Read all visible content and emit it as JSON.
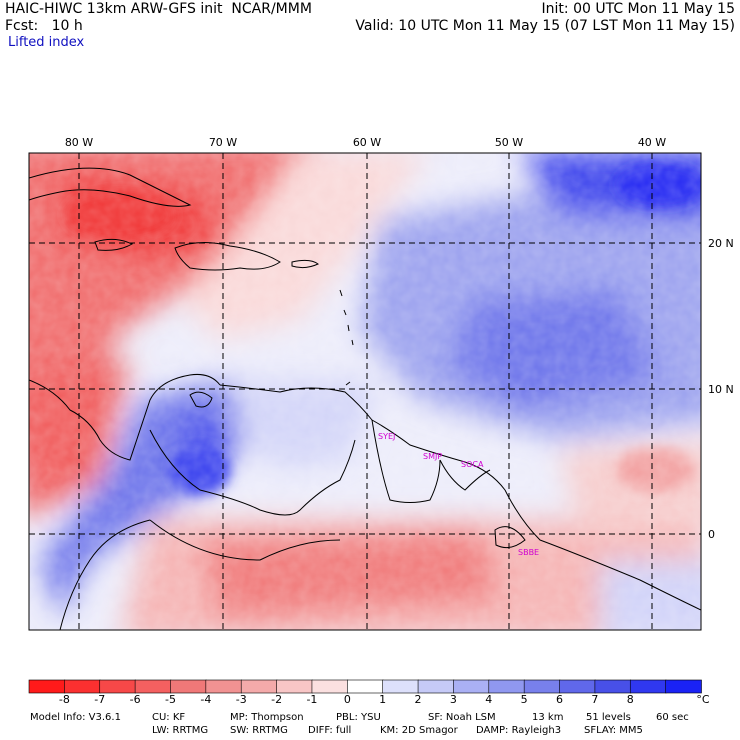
{
  "header": {
    "model_title": "HAIC-HIWC 13km ARW-GFS init  NCAR/MMM",
    "forecast_hour": "Fcst:   10 h",
    "init_time": "Init: 00 UTC Mon 11 May 15",
    "valid_time": "Valid: 10 UTC Mon 11 May 15 (07 LST Mon 11 May 15)",
    "field_name": "Lifted index"
  },
  "map": {
    "lon_labels": [
      "80 W",
      "70 W",
      "60 W",
      "50 W",
      "40 W"
    ],
    "lat_labels": [
      "20 N",
      "10 N",
      "0"
    ],
    "station_labels": [
      "SYEJ",
      "SMJP",
      "SOCA",
      "SBBE"
    ]
  },
  "colorbar": {
    "unit": "°C",
    "ticks": [
      "-8",
      "-7",
      "-6",
      "-5",
      "-4",
      "-3",
      "-2",
      "-1",
      "0",
      "1",
      "2",
      "3",
      "4",
      "5",
      "6",
      "7",
      "8"
    ],
    "colors": [
      "#ff1a1a",
      "#fb3030",
      "#f74848",
      "#f46060",
      "#f07878",
      "#f19292",
      "#f4aaaa",
      "#f8c6c6",
      "#fbe0e0",
      "#ffffff",
      "#dde0fb",
      "#c6caf7",
      "#aab0f4",
      "#9098f0",
      "#7880ec",
      "#6068ea",
      "#4850e8",
      "#3038f0",
      "#1a22f5"
    ]
  },
  "footer": {
    "line1": [
      "Model Info: V3.6.1",
      "CU: KF",
      "MP: Thompson",
      "PBL: YSU",
      "SF: Noah LSM",
      "13 km",
      "51 levels",
      "60 sec"
    ],
    "line2": [
      "LW: RRTMG",
      "SW: RRTMG",
      "DIFF: full",
      "KM: 2D Smagor",
      "DAMP: Rayleigh3",
      "SFLAY: MM5"
    ]
  }
}
